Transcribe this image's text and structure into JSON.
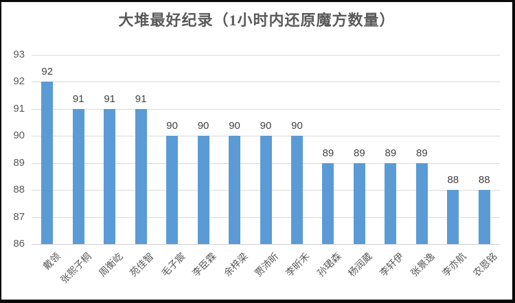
{
  "chart_data": {
    "type": "bar",
    "title": "大堆最好纪录（1小时内还原魔方数量）",
    "categories": [
      "戴领",
      "张熙子桐",
      "周衡屹",
      "苑佳智",
      "毛子宸",
      "李臣霖",
      "余梓梁",
      "贾沛昕",
      "李昕禾",
      "孙珺森",
      "杨润葳",
      "李轩伊",
      "张景逸",
      "李亦航",
      "农恩铭"
    ],
    "values": [
      92,
      91,
      91,
      91,
      90,
      90,
      90,
      90,
      90,
      89,
      89,
      89,
      89,
      88,
      88
    ],
    "xlabel": "",
    "ylabel": "",
    "ylim": [
      86,
      93
    ],
    "y_ticks": [
      86,
      87,
      88,
      89,
      90,
      91,
      92,
      93
    ],
    "grid": "horizontal",
    "legend_position": "none",
    "data_labels_shown": true,
    "bar_color": "#5b9bd5",
    "gridline_color": "#d9d9d9",
    "title_color": "#595959",
    "axis_text_color": "#595959",
    "value_label_color": "#404040"
  }
}
